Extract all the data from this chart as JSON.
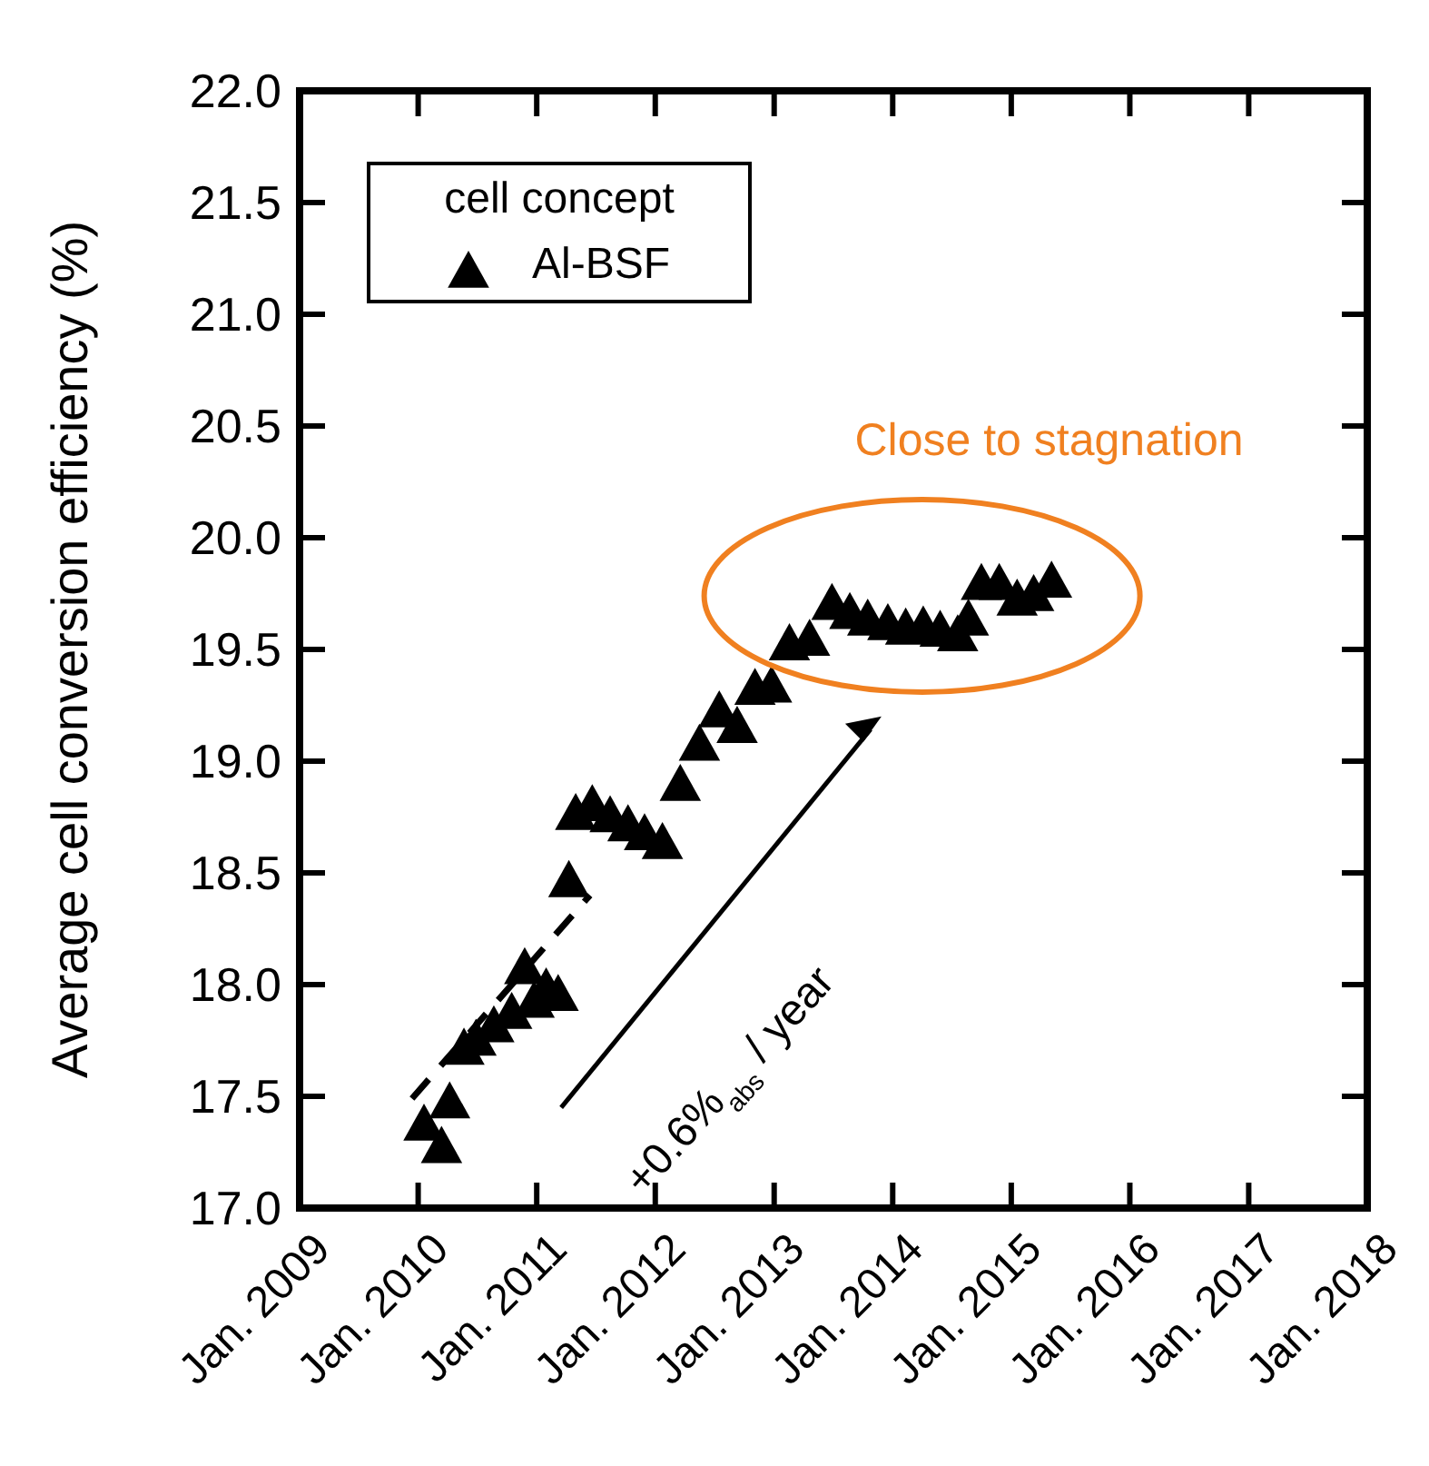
{
  "chart_data": {
    "type": "scatter",
    "ylabel": "Average cell conversion efficiency (%)",
    "legend_title": "cell concept",
    "legend": "top left",
    "xlim": [
      "2009-01-01",
      "2018-01-01"
    ],
    "xticks": [
      {
        "value": "2009-01-01",
        "label": "Jan. 2009"
      },
      {
        "value": "2010-01-01",
        "label": "Jan. 2010"
      },
      {
        "value": "2011-01-01",
        "label": "Jan. 2011"
      },
      {
        "value": "2012-01-01",
        "label": "Jan. 2012"
      },
      {
        "value": "2013-01-01",
        "label": "Jan. 2013"
      },
      {
        "value": "2014-01-01",
        "label": "Jan. 2014"
      },
      {
        "value": "2015-01-01",
        "label": "Jan. 2015"
      },
      {
        "value": "2016-01-01",
        "label": "Jan. 2016"
      },
      {
        "value": "2017-01-01",
        "label": "Jan. 2017"
      },
      {
        "value": "2018-01-01",
        "label": "Jan. 2018"
      }
    ],
    "ylim": [
      17,
      22
    ],
    "yticks": [
      {
        "value": 17,
        "label": "17.0"
      },
      {
        "value": 17.5,
        "label": "17.5"
      },
      {
        "value": 18,
        "label": "18.0"
      },
      {
        "value": 18.5,
        "label": "18.5"
      },
      {
        "value": 19,
        "label": "19.0"
      },
      {
        "value": 19.5,
        "label": "19.5"
      },
      {
        "value": 20,
        "label": "20.0"
      },
      {
        "value": 20.5,
        "label": "20.5"
      },
      {
        "value": 21,
        "label": "21.0"
      },
      {
        "value": 21.5,
        "label": "21.5"
      },
      {
        "value": 22,
        "label": "22.0"
      }
    ],
    "series": [
      {
        "name": "Al-BSF",
        "marker": "triangle",
        "color": "#000000",
        "x": [
          "2010-01-19",
          "2010-03-14",
          "2010-04-08",
          "2010-05-22",
          "2010-06-28",
          "2010-08-22",
          "2010-10-16",
          "2010-11-25",
          "2010-12-24",
          "2011-01-30",
          "2011-03-08",
          "2011-04-10",
          "2011-05-01",
          "2011-06-21",
          "2011-08-15",
          "2011-10-09",
          "2011-11-29",
          "2012-01-23",
          "2012-03-18",
          "2012-05-16",
          "2012-07-16",
          "2012-09-09",
          "2012-11-03",
          "2012-12-24",
          "2013-02-17",
          "2013-04-20",
          "2013-06-28",
          "2013-08-22",
          "2013-10-16",
          "2013-12-17",
          "2014-02-10",
          "2014-04-05",
          "2014-05-27",
          "2014-07-20",
          "2014-08-22",
          "2014-10-01",
          "2014-11-25",
          "2015-01-19",
          "2015-03-11",
          "2015-05-05"
        ],
        "values": [
          17.37,
          17.27,
          17.47,
          17.71,
          17.75,
          17.81,
          17.87,
          18.07,
          17.92,
          17.98,
          17.95,
          18.46,
          18.76,
          18.8,
          18.75,
          18.71,
          18.67,
          18.63,
          18.89,
          19.07,
          19.22,
          19.15,
          19.32,
          19.33,
          19.52,
          19.54,
          19.7,
          19.66,
          19.63,
          19.61,
          19.59,
          19.6,
          19.58,
          19.56,
          19.63,
          19.79,
          19.79,
          19.72,
          19.74,
          19.8
        ]
      },
      {
        "type": "line",
        "line_style": "dashed",
        "marker": "none",
        "color": "#000000",
        "x": [
          "2009-12-13",
          "2011-06-14"
        ],
        "values": [
          17.49,
          18.4
        ]
      }
    ],
    "annotations": [
      "Close to stagnation",
      "+0.6%$_{abs}$ / year"
    ]
  }
}
